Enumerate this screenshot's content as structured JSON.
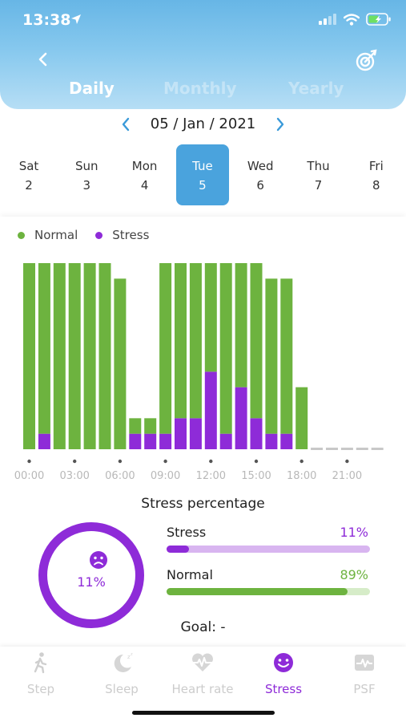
{
  "status_bar": {
    "time": "13:38"
  },
  "header": {
    "tabs": [
      {
        "label": "Daily",
        "active": true
      },
      {
        "label": "Monthly",
        "active": false
      },
      {
        "label": "Yearly",
        "active": false
      }
    ]
  },
  "date_nav": {
    "date": "05 / Jan / 2021"
  },
  "week": [
    {
      "name": "Sat",
      "num": "2",
      "active": false
    },
    {
      "name": "Sun",
      "num": "3",
      "active": false
    },
    {
      "name": "Mon",
      "num": "4",
      "active": false
    },
    {
      "name": "Tue",
      "num": "5",
      "active": true
    },
    {
      "name": "Wed",
      "num": "6",
      "active": false
    },
    {
      "name": "Thu",
      "num": "7",
      "active": false
    },
    {
      "name": "Fri",
      "num": "8",
      "active": false
    }
  ],
  "legend": {
    "normal": "Normal",
    "stress": "Stress"
  },
  "colors": {
    "normal": "#6db33f",
    "stress": "#8e2bd8",
    "stress_track": "#d8b5f0",
    "normal_track": "#d6ecc8",
    "accent": "#4aa3dd",
    "empty": "#c8c8c8"
  },
  "chart_data": {
    "type": "bar",
    "stacked": true,
    "x_ticks": [
      "00:00",
      "03:00",
      "06:00",
      "09:00",
      "12:00",
      "15:00",
      "18:00",
      "21:00"
    ],
    "categories": [
      "00:00",
      "01:00",
      "02:00",
      "03:00",
      "04:00",
      "05:00",
      "06:00",
      "07:00",
      "08:00",
      "09:00",
      "10:00",
      "11:00",
      "12:00",
      "13:00",
      "14:00",
      "15:00",
      "16:00",
      "17:00",
      "18:00",
      "19:00",
      "20:00",
      "21:00",
      "22:00",
      "23:00"
    ],
    "series": [
      {
        "name": "Normal",
        "values": [
          12,
          11,
          12,
          12,
          12,
          12,
          11,
          1,
          1,
          11,
          10,
          10,
          7,
          11,
          8,
          10,
          10,
          10,
          4,
          0,
          0,
          0,
          0,
          0
        ]
      },
      {
        "name": "Stress",
        "values": [
          0,
          1,
          0,
          0,
          0,
          0,
          0,
          1,
          1,
          1,
          2,
          2,
          5,
          1,
          4,
          2,
          1,
          1,
          0,
          0,
          0,
          0,
          0,
          0
        ]
      }
    ],
    "ylim": [
      0,
      12
    ]
  },
  "stress_summary": {
    "title": "Stress percentage",
    "ring_value": "11%",
    "stress": {
      "label": "Stress",
      "value_text": "11%",
      "fraction": 0.11
    },
    "normal": {
      "label": "Normal",
      "value_text": "89%",
      "fraction": 0.89
    },
    "goal": "Goal: -"
  },
  "tabbar": [
    {
      "label": "Step",
      "icon": "walk-icon",
      "active": false
    },
    {
      "label": "Sleep",
      "icon": "moon-icon",
      "active": false
    },
    {
      "label": "Heart rate",
      "icon": "heart-rate-icon",
      "active": false
    },
    {
      "label": "Stress",
      "icon": "smiley-icon",
      "active": true
    },
    {
      "label": "PSF",
      "icon": "psf-icon",
      "active": false
    }
  ]
}
